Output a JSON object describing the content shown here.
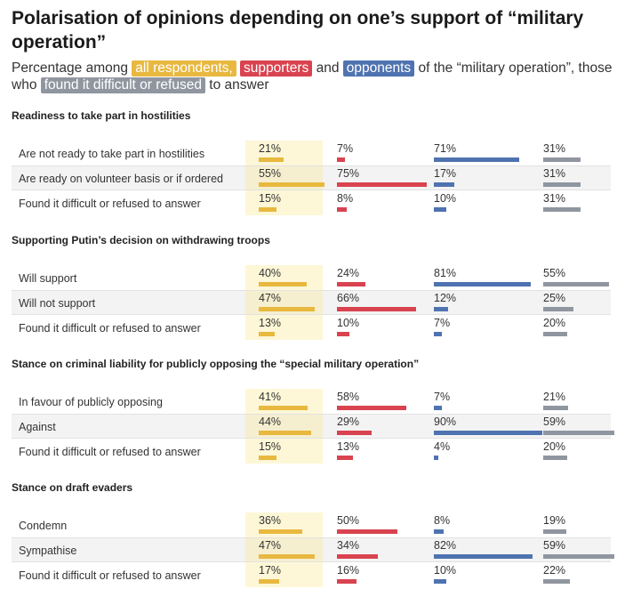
{
  "header": {
    "title": "Polarisation of opinions depending on one’s support of “military operation”",
    "subtitle_prefix": "Percentage among",
    "legend_all": "all respondents,",
    "legend_supporters": "supporters",
    "subtitle_and": "and",
    "legend_opponents": "opponents",
    "subtitle_mid": "of the “military operation”, those who",
    "legend_dk": "found it difficult or refused",
    "subtitle_suffix": "to answer"
  },
  "colors": {
    "all": "#e8b83f",
    "supporters": "#d9434f",
    "opponents": "#4f73b0",
    "dk": "#9096a0"
  },
  "chart_data": {
    "type": "table",
    "series_keys": [
      "all",
      "supporters",
      "opponents",
      "dk"
    ],
    "unit": "%",
    "sections": [
      {
        "title": "Readiness to take part in hostilities",
        "rows": [
          {
            "label": "Are not ready to take part in hostilities",
            "values": [
              21,
              7,
              71,
              31
            ]
          },
          {
            "label": "Are ready on volunteer basis or if ordered",
            "values": [
              55,
              75,
              17,
              31
            ]
          },
          {
            "label": "Found it difficult or refused to answer",
            "values": [
              15,
              8,
              10,
              31
            ]
          }
        ]
      },
      {
        "title": "Supporting Putin’s decision on withdrawing troops",
        "rows": [
          {
            "label": "Will support",
            "values": [
              40,
              24,
              81,
              55
            ]
          },
          {
            "label": "Will not support",
            "values": [
              47,
              66,
              12,
              25
            ]
          },
          {
            "label": "Found it difficult or refused to answer",
            "values": [
              13,
              10,
              7,
              20
            ]
          }
        ]
      },
      {
        "title": "Stance on criminal liability for publicly opposing the “special military operation”",
        "rows": [
          {
            "label": "In favour of publicly opposing",
            "values": [
              41,
              58,
              7,
              21
            ]
          },
          {
            "label": "Against",
            "values": [
              44,
              29,
              90,
              59
            ]
          },
          {
            "label": "Found it difficult or refused to answer",
            "values": [
              15,
              13,
              4,
              20
            ]
          }
        ]
      },
      {
        "title": "Stance on draft evaders",
        "rows": [
          {
            "label": "Condemn",
            "values": [
              36,
              50,
              8,
              19
            ]
          },
          {
            "label": "Sympathise",
            "values": [
              47,
              34,
              82,
              59
            ]
          },
          {
            "label": "Found it difficult or refused to answer",
            "values": [
              17,
              16,
              10,
              22
            ]
          }
        ]
      }
    ]
  }
}
